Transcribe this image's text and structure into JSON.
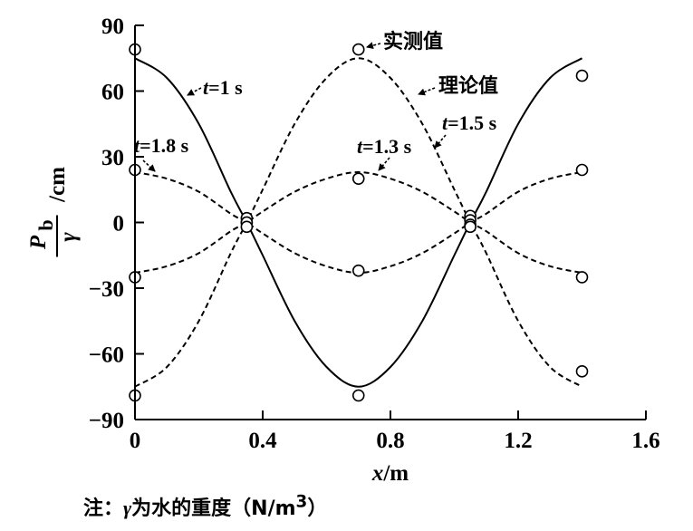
{
  "chart_data": {
    "type": "line",
    "xlabel": "x/m",
    "ylabel": "P_b/γ /cm",
    "xlim": [
      0,
      1.6
    ],
    "ylim": [
      -90,
      90
    ],
    "x_ticks": [
      "0",
      "0.4",
      "0.8",
      "1.2",
      "1.6"
    ],
    "y_ticks": [
      "90",
      "60",
      "30",
      "0",
      "−30",
      "−60",
      "−90"
    ],
    "legend": [
      {
        "style": "marker",
        "label": "实测值"
      },
      {
        "style": "dashed",
        "label": "理论值"
      }
    ],
    "series": [
      {
        "name": "t=1 s",
        "line": "solid",
        "x": [
          0,
          0.1,
          0.2,
          0.3,
          0.35,
          0.4,
          0.5,
          0.6,
          0.7,
          0.8,
          0.9,
          1.0,
          1.05,
          1.1,
          1.2,
          1.3,
          1.4
        ],
        "y": [
          75,
          66,
          45,
          14,
          0,
          -15,
          -45,
          -66,
          -75,
          -66,
          -45,
          -15,
          0,
          14,
          45,
          66,
          75
        ]
      },
      {
        "name": "t=1.5 s",
        "line": "dashed",
        "x": [
          0,
          0.1,
          0.2,
          0.3,
          0.35,
          0.4,
          0.5,
          0.6,
          0.7,
          0.8,
          0.9,
          1.0,
          1.05,
          1.1,
          1.2,
          1.3,
          1.4
        ],
        "y": [
          -75,
          -66,
          -45,
          -14,
          0,
          15,
          45,
          66,
          75,
          66,
          45,
          15,
          0,
          -14,
          -45,
          -66,
          -75
        ]
      },
      {
        "name": "t=1.3 s",
        "line": "dashed",
        "x": [
          0,
          0.1,
          0.2,
          0.3,
          0.35,
          0.4,
          0.5,
          0.6,
          0.7,
          0.8,
          0.9,
          1.0,
          1.05,
          1.1,
          1.2,
          1.3,
          1.4
        ],
        "y": [
          -23,
          -20,
          -14,
          -4,
          0,
          5,
          14,
          20,
          23,
          20,
          14,
          5,
          0,
          -4,
          -14,
          -20,
          -23
        ]
      },
      {
        "name": "t=1.8 s",
        "line": "dashed",
        "x": [
          0,
          0.1,
          0.2,
          0.3,
          0.35,
          0.4,
          0.5,
          0.6,
          0.7,
          0.8,
          0.9,
          1.0,
          1.05,
          1.1,
          1.2,
          1.3,
          1.4
        ],
        "y": [
          23,
          20,
          14,
          4,
          0,
          -5,
          -14,
          -20,
          -23,
          -20,
          -14,
          -5,
          0,
          4,
          14,
          20,
          23
        ]
      }
    ],
    "measured": {
      "x": [
        0,
        0,
        0,
        0,
        0.35,
        0.35,
        0.35,
        0.35,
        0.7,
        0.7,
        0.7,
        0.7,
        1.05,
        1.05,
        1.05,
        1.05,
        1.4,
        1.4,
        1.4,
        1.4
      ],
      "y": [
        79,
        24,
        -25,
        -79,
        2,
        0,
        0,
        -2,
        79,
        20,
        -22,
        -79,
        3,
        1,
        -1,
        -2,
        67,
        24,
        -25,
        -68
      ]
    },
    "annotations": [
      "t=1 s",
      "t=1.8 s",
      "t=1.3 s",
      "t=1.5 s"
    ]
  },
  "note": {
    "prefix": "注：",
    "symbol": "γ",
    "text": "为水的重度（N/m",
    "sup": "3",
    "suffix": "）"
  }
}
